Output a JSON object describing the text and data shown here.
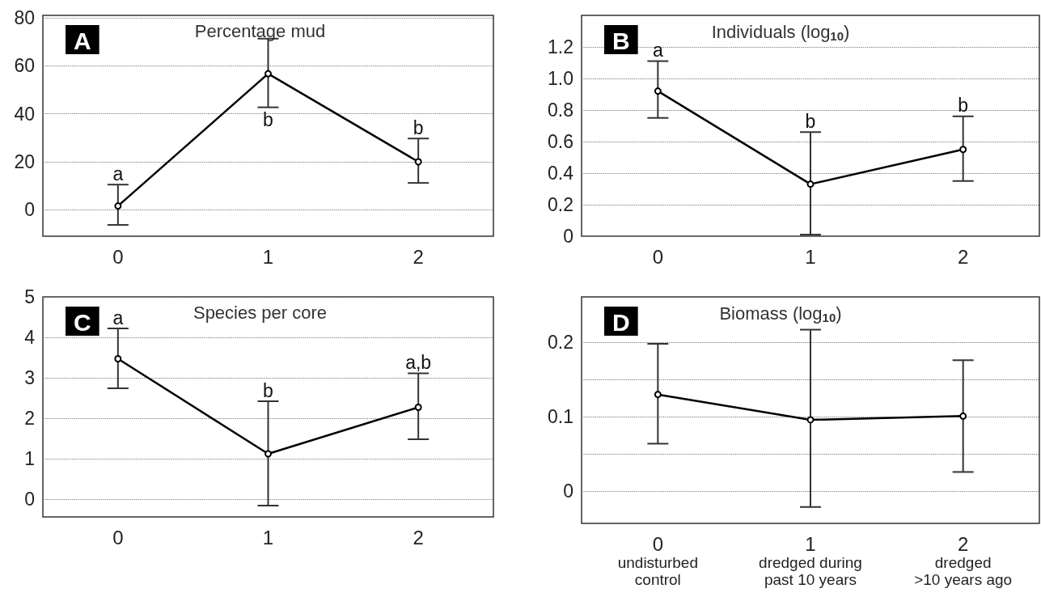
{
  "chart_data": [
    {
      "type": "line",
      "title": "Percentage mud",
      "categories": [
        "0",
        "1",
        "2"
      ],
      "values": [
        1.6,
        56.7,
        20
      ],
      "errors": [
        [
          -6.3,
          10.5
        ],
        [
          42.7,
          71.3
        ],
        [
          11.2,
          29.7
        ]
      ],
      "color": "#000000",
      "ylim": [
        -11,
        81
      ],
      "yticks": [
        0,
        20,
        40,
        60,
        80
      ],
      "grid": "y",
      "marker": "circle",
      "line_style": "solid",
      "annotations": [
        "A",
        {
          "text": "a",
          "x": "0",
          "y": 10.5
        },
        {
          "text": "b",
          "x": "1",
          "y": 42.7
        },
        {
          "text": "b",
          "x": "2",
          "y": 29.7
        }
      ]
    },
    {
      "type": "line",
      "title": "Individuals (log$_{10}$)",
      "categories": [
        "0",
        "1",
        "2"
      ],
      "values": [
        0.92,
        0.33,
        0.55
      ],
      "errors": [
        [
          0.75,
          1.11
        ],
        [
          0.01,
          0.66
        ],
        [
          0.35,
          0.76
        ]
      ],
      "color": "#000000",
      "ylim": [
        0,
        1.4
      ],
      "yticks": [
        0,
        0.2,
        0.4,
        0.6,
        0.8,
        {
          "value": 1.0,
          "label": "1.0"
        },
        1.2
      ],
      "grid": "y",
      "marker": "circle",
      "line_style": "solid",
      "annotations": [
        "B",
        {
          "text": "a",
          "x": "0",
          "y": 1.11
        },
        {
          "text": "b",
          "x": "1",
          "y": 0.66
        },
        {
          "text": "b",
          "x": "2",
          "y": 0.76
        }
      ]
    },
    {
      "type": "line",
      "title": "Species per core",
      "categories": [
        "0",
        "1",
        "2"
      ],
      "values": [
        3.47,
        1.12,
        2.27
      ],
      "errors": [
        [
          2.74,
          4.22
        ],
        [
          -0.16,
          2.42
        ],
        [
          1.48,
          3.11
        ]
      ],
      "color": "#000000",
      "ylim": [
        -0.44,
        5
      ],
      "yticks": [
        0,
        1,
        2,
        3,
        4,
        5
      ],
      "grid": "y",
      "marker": "circle",
      "line_style": "solid",
      "annotations": [
        "C",
        {
          "text": "a",
          "x": "0",
          "y": 4.22
        },
        {
          "text": "b",
          "x": "1",
          "y": 2.42
        },
        {
          "text": "a,b",
          "x": "2",
          "y": 3.11
        }
      ]
    },
    {
      "type": "line",
      "title": "Biomass (log$_{10}$)",
      "categories": [
        "0\nundisturbed\ncontrol",
        "1\ndredged during\npast 10 years",
        "2\ndredged\n>10 years ago"
      ],
      "values": [
        0.13,
        0.096,
        0.101
      ],
      "errors": [
        [
          0.064,
          0.198
        ],
        [
          -0.021,
          0.217
        ],
        [
          0.026,
          0.176
        ]
      ],
      "color": "#000000",
      "ylim": [
        -0.043,
        0.261
      ],
      "yticks": [
        0,
        {
          "value": 0.05,
          "label": null
        },
        0.1,
        {
          "value": 0.15,
          "label": null
        },
        0.2
      ],
      "grid": "y",
      "marker": "circle",
      "line_style": "solid",
      "annotations": [
        "D"
      ]
    }
  ]
}
